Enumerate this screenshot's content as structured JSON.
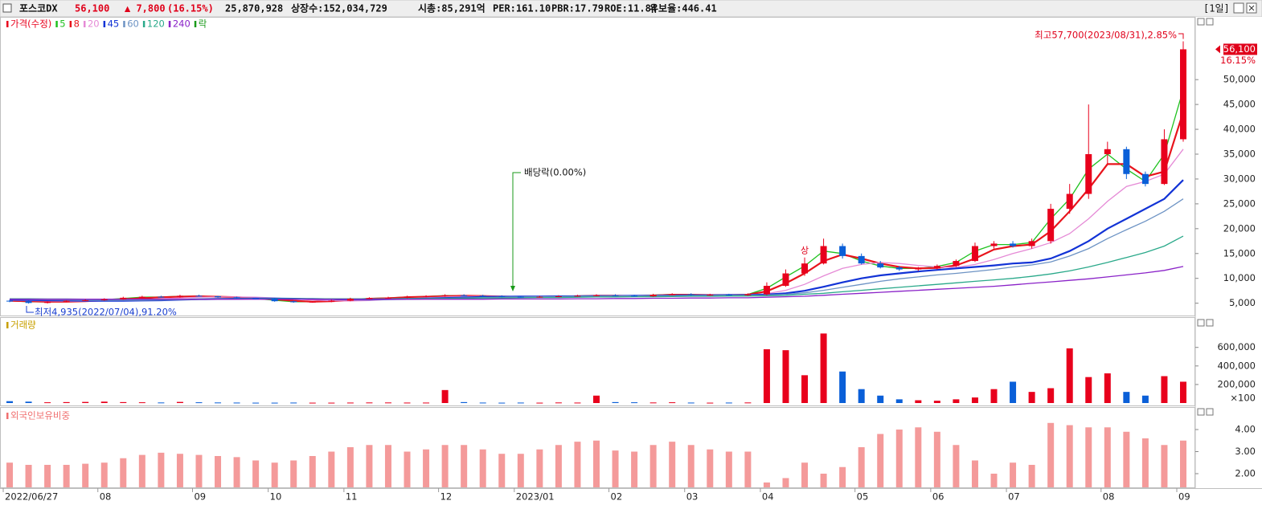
{
  "header": {
    "name": "포스코DX",
    "price": "56,100",
    "change": "▲ 7,800",
    "change_pct": "(16.15%)",
    "volume": "25,870,928",
    "items": [
      "상장수:152,034,729",
      "시총:85,291억",
      "PER:161.10",
      "PBR:17.79",
      "ROE:11.84",
      "유보율:446.41"
    ],
    "period": "[1일]"
  },
  "chart_data": [
    {
      "type": "candlestick",
      "name": "가격(수정)",
      "up_color": "#e8001c",
      "down_color": "#0a5fd8",
      "open": [
        5500,
        5400,
        5050,
        5300,
        5500,
        5600,
        5800,
        6100,
        6300,
        6200,
        6500,
        6400,
        6200,
        6000,
        5900,
        5400,
        5200,
        5300,
        5500,
        5900,
        6000,
        6100,
        6300,
        6400,
        6600,
        6500,
        6400,
        6300,
        6200,
        6300,
        6400,
        6500,
        6600,
        6500,
        6400,
        6700,
        6800,
        6600,
        6700,
        6600,
        6800,
        8500,
        11000,
        13000,
        16500,
        14500,
        13000,
        12200,
        11800,
        12000,
        12500,
        13500,
        16500,
        17000,
        16500,
        17500,
        24000,
        27000,
        35000,
        36000,
        31000,
        29000,
        38000
      ],
      "high": [
        5700,
        5500,
        5400,
        5600,
        5800,
        6000,
        6300,
        6500,
        6500,
        6700,
        6700,
        6500,
        6300,
        6100,
        6000,
        5500,
        5400,
        5700,
        6100,
        6200,
        6300,
        6500,
        6600,
        6800,
        6800,
        6700,
        6600,
        6400,
        6500,
        6600,
        6700,
        6800,
        6800,
        6700,
        6900,
        7000,
        7000,
        6900,
        6900,
        7000,
        9200,
        11800,
        14200,
        18000,
        17000,
        15000,
        13500,
        12500,
        12300,
        12800,
        13800,
        17200,
        17500,
        17500,
        18000,
        25000,
        29000,
        45000,
        37500,
        36500,
        31500,
        40000,
        57700
      ],
      "low": [
        5200,
        4935,
        4950,
        5200,
        5400,
        5500,
        5700,
        6000,
        6100,
        6100,
        6300,
        6100,
        5900,
        5800,
        5300,
        5100,
        5100,
        5200,
        5400,
        5800,
        5900,
        6000,
        6200,
        6300,
        6400,
        6300,
        6200,
        6100,
        6100,
        6200,
        6300,
        6400,
        6400,
        6300,
        6300,
        6600,
        6500,
        6500,
        6500,
        6500,
        6600,
        8300,
        10500,
        12800,
        14000,
        12800,
        12000,
        11500,
        11500,
        11800,
        12300,
        13300,
        16000,
        16200,
        16000,
        17000,
        23000,
        26000,
        33000,
        30000,
        28500,
        28800,
        37500
      ],
      "close": [
        5400,
        5050,
        5300,
        5500,
        5600,
        5800,
        6100,
        6300,
        6200,
        6500,
        6400,
        6200,
        6000,
        5900,
        5400,
        5200,
        5300,
        5500,
        5900,
        6000,
        6100,
        6300,
        6400,
        6600,
        6500,
        6400,
        6300,
        6200,
        6300,
        6400,
        6500,
        6600,
        6500,
        6400,
        6700,
        6800,
        6600,
        6700,
        6600,
        6800,
        8500,
        11000,
        13000,
        16500,
        14500,
        13000,
        12200,
        11800,
        12000,
        12500,
        13500,
        16500,
        17000,
        16500,
        17500,
        24000,
        27000,
        35000,
        36000,
        31000,
        29000,
        38000,
        56100
      ],
      "series": [
        {
          "name": "5",
          "color": "#1fc21f",
          "values": [
            5500,
            5300,
            5250,
            5350,
            5500,
            5700,
            5950,
            6200,
            6250,
            6400,
            6400,
            6300,
            6100,
            5950,
            5600,
            5300,
            5300,
            5450,
            5800,
            5950,
            6050,
            6250,
            6350,
            6550,
            6500,
            6400,
            6300,
            6250,
            6300,
            6400,
            6450,
            6550,
            6500,
            6450,
            6650,
            6750,
            6650,
            6700,
            6650,
            6750,
            8000,
            10300,
            12500,
            15500,
            15000,
            13500,
            12500,
            12000,
            12000,
            12400,
            13200,
            15500,
            16800,
            16800,
            17200,
            22000,
            26000,
            32000,
            35000,
            32000,
            29500,
            35000,
            48000
          ]
        },
        {
          "name": "8",
          "color": "#e8141c",
          "values": [
            5500,
            5400,
            5300,
            5300,
            5400,
            5600,
            5800,
            6000,
            6200,
            6300,
            6400,
            6300,
            6200,
            6000,
            5800,
            5500,
            5300,
            5400,
            5600,
            5900,
            6000,
            6200,
            6300,
            6400,
            6500,
            6450,
            6350,
            6250,
            6250,
            6350,
            6400,
            6500,
            6500,
            6450,
            6550,
            6700,
            6700,
            6650,
            6650,
            6700,
            7400,
            9000,
            11000,
            13500,
            14800,
            14000,
            13000,
            12300,
            12000,
            12100,
            12600,
            14000,
            15800,
            16500,
            16800,
            19500,
            23500,
            28000,
            33000,
            33000,
            30500,
            31500,
            43500
          ]
        },
        {
          "name": "20",
          "color": "#e58ad6",
          "values": [
            5600,
            5550,
            5450,
            5400,
            5400,
            5450,
            5550,
            5700,
            5900,
            6050,
            6200,
            6250,
            6250,
            6200,
            6050,
            5850,
            5650,
            5500,
            5450,
            5550,
            5750,
            5950,
            6100,
            6250,
            6350,
            6400,
            6400,
            6350,
            6350,
            6350,
            6350,
            6400,
            6450,
            6500,
            6550,
            6600,
            6650,
            6650,
            6650,
            6700,
            6900,
            7600,
            8800,
            10500,
            12000,
            12800,
            13200,
            13000,
            12600,
            12300,
            12200,
            12800,
            13800,
            15000,
            16000,
            17200,
            19000,
            22000,
            25500,
            28500,
            29500,
            31000,
            36000
          ]
        },
        {
          "name": "45",
          "color": "#1233d6",
          "values": [
            5700,
            5650,
            5600,
            5550,
            5500,
            5500,
            5500,
            5550,
            5600,
            5700,
            5800,
            5850,
            5900,
            5950,
            5950,
            5900,
            5850,
            5800,
            5750,
            5750,
            5800,
            5850,
            5950,
            6050,
            6150,
            6250,
            6300,
            6350,
            6350,
            6400,
            6400,
            6450,
            6450,
            6500,
            6500,
            6550,
            6600,
            6600,
            6650,
            6650,
            6750,
            7000,
            7500,
            8300,
            9200,
            10000,
            10600,
            11000,
            11400,
            11700,
            12000,
            12300,
            12600,
            13000,
            13200,
            14000,
            15500,
            17500,
            20000,
            22000,
            24000,
            26000,
            29800
          ]
        },
        {
          "name": "60",
          "color": "#6d93c4",
          "values": [
            5800,
            5750,
            5700,
            5650,
            5600,
            5600,
            5600,
            5600,
            5650,
            5700,
            5750,
            5800,
            5850,
            5900,
            5900,
            5900,
            5850,
            5800,
            5750,
            5750,
            5750,
            5800,
            5850,
            5950,
            6050,
            6150,
            6200,
            6250,
            6300,
            6350,
            6400,
            6400,
            6450,
            6450,
            6500,
            6500,
            6550,
            6550,
            6600,
            6600,
            6650,
            6800,
            7100,
            7600,
            8200,
            8800,
            9400,
            9900,
            10300,
            10700,
            11000,
            11400,
            11800,
            12300,
            12700,
            13300,
            14500,
            16000,
            18000,
            19800,
            21500,
            23500,
            26000
          ]
        },
        {
          "name": "120",
          "color": "#2aa98a",
          "values": [
            5900,
            5900,
            5850,
            5850,
            5800,
            5800,
            5800,
            5800,
            5800,
            5800,
            5850,
            5850,
            5850,
            5900,
            5900,
            5900,
            5900,
            5900,
            5900,
            5900,
            5900,
            5950,
            5950,
            6000,
            6000,
            6050,
            6050,
            6100,
            6150,
            6150,
            6200,
            6250,
            6250,
            6300,
            6300,
            6350,
            6400,
            6400,
            6450,
            6450,
            6500,
            6600,
            6800,
            7000,
            7300,
            7600,
            7900,
            8200,
            8500,
            8800,
            9100,
            9400,
            9700,
            10000,
            10400,
            10900,
            11500,
            12300,
            13200,
            14200,
            15200,
            16500,
            18500
          ]
        },
        {
          "name": "240",
          "color": "#8a22c8",
          "values": [
            5800,
            5800,
            5800,
            5800,
            5800,
            5800,
            5800,
            5800,
            5800,
            5800,
            5800,
            5800,
            5800,
            5800,
            5800,
            5800,
            5800,
            5800,
            5800,
            5800,
            5800,
            5800,
            5800,
            5800,
            5800,
            5800,
            5850,
            5850,
            5850,
            5850,
            5900,
            5900,
            5950,
            5950,
            6000,
            6000,
            6050,
            6050,
            6100,
            6100,
            6200,
            6300,
            6400,
            6600,
            6800,
            7000,
            7200,
            7400,
            7600,
            7800,
            8000,
            8200,
            8400,
            8700,
            9000,
            9300,
            9600,
            9900,
            10300,
            10700,
            11100,
            11600,
            12400
          ]
        }
      ],
      "extra_legend": {
        "label": "락",
        "color": "#1a9a1a"
      },
      "ylim": [
        4300,
        61500
      ],
      "yticks": [
        {
          "value": 5000,
          "label": "5,000"
        },
        {
          "value": 10000,
          "label": "10,000"
        },
        {
          "value": 15000,
          "label": "15,000"
        },
        {
          "value": 20000,
          "label": "20,000"
        },
        {
          "value": 25000,
          "label": "25,000"
        },
        {
          "value": 30000,
          "label": "30,000"
        },
        {
          "value": 35000,
          "label": "35,000"
        },
        {
          "value": 40000,
          "label": "40,000"
        },
        {
          "value": 45000,
          "label": "45,000"
        },
        {
          "value": 50000,
          "label": "50,000"
        }
      ],
      "high_label": "최고57,700(2023/08/31),2.85%",
      "low_label": "최저4,935(2022/07/04),91.20%",
      "ex_dividend_label": "배당락(0.00%)",
      "limit_up_mark": "상",
      "last_price_label": "56,100",
      "last_change_label": "16.15%"
    },
    {
      "type": "bar",
      "title": "거래량",
      "title_color": "#c8a000",
      "values": [
        20000,
        15000,
        8000,
        10000,
        12000,
        15000,
        10000,
        8000,
        6000,
        12000,
        8000,
        6000,
        5000,
        4000,
        4000,
        5000,
        4000,
        4000,
        5000,
        6000,
        6000,
        5000,
        5000,
        140000,
        10000,
        5000,
        4000,
        5000,
        4000,
        6000,
        5000,
        80000,
        10000,
        8000,
        6000,
        8000,
        5000,
        4000,
        5000,
        6000,
        580000,
        570000,
        300000,
        750000,
        340000,
        150000,
        80000,
        40000,
        30000,
        25000,
        40000,
        60000,
        150000,
        230000,
        120000,
        160000,
        590000,
        280000,
        320000,
        120000,
        80000,
        290000,
        230000
      ],
      "ylim": [
        0,
        840000
      ],
      "yticks": [
        {
          "value": 200000,
          "label": "200,000"
        },
        {
          "value": 400000,
          "label": "400,000"
        },
        {
          "value": 600000,
          "label": "600,000"
        }
      ],
      "unit_label": "×100"
    },
    {
      "type": "bar",
      "title": "외국인보유비중",
      "title_color": "#f07070",
      "color": "#f49a9a",
      "categories": [
        "2022/06/27",
        null,
        null,
        null,
        null,
        "08",
        null,
        null,
        null,
        null,
        "09",
        null,
        null,
        null,
        "10",
        null,
        null,
        null,
        "11",
        null,
        null,
        null,
        null,
        "12",
        null,
        null,
        null,
        "2023/01",
        null,
        null,
        null,
        null,
        "02",
        null,
        null,
        null,
        "03",
        null,
        null,
        null,
        "04",
        null,
        null,
        null,
        null,
        "05",
        null,
        null,
        null,
        "06",
        null,
        null,
        null,
        "07",
        null,
        null,
        null,
        null,
        "08",
        null,
        null,
        null,
        "09"
      ],
      "values": [
        2.5,
        2.4,
        2.4,
        2.4,
        2.45,
        2.5,
        2.7,
        2.85,
        2.95,
        2.9,
        2.85,
        2.8,
        2.75,
        2.6,
        2.5,
        2.6,
        2.8,
        3.0,
        3.2,
        3.3,
        3.3,
        3.0,
        3.1,
        3.3,
        3.3,
        3.1,
        2.9,
        2.9,
        3.1,
        3.3,
        3.45,
        3.5,
        3.05,
        3.0,
        3.3,
        3.45,
        3.3,
        3.1,
        3.0,
        3.0,
        1.6,
        1.8,
        2.5,
        2.0,
        2.3,
        3.2,
        3.8,
        4.0,
        4.1,
        3.9,
        3.3,
        2.6,
        2.0,
        2.5,
        2.4,
        4.3,
        4.2,
        4.1,
        4.1,
        3.9,
        3.6,
        3.3,
        3.5
      ],
      "ylim": [
        1.38,
        4.62
      ],
      "yticks": [
        {
          "value": 2,
          "label": "2.00"
        },
        {
          "value": 3,
          "label": "3.00"
        },
        {
          "value": 4,
          "label": "4.00"
        }
      ]
    }
  ]
}
